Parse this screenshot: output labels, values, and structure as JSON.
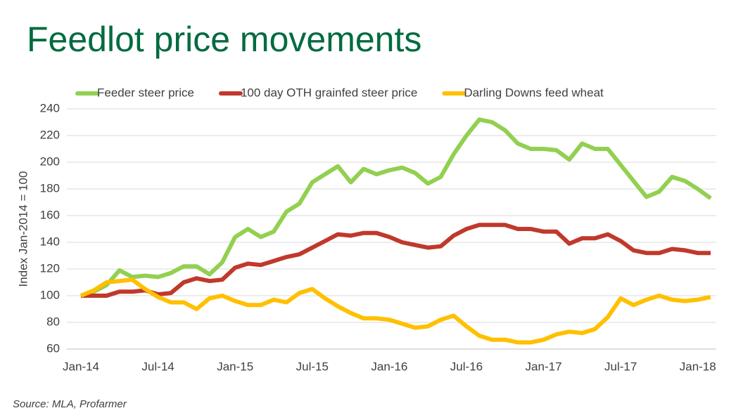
{
  "chart_data": {
    "type": "line",
    "title": "Feedlot price movements",
    "y_label": "Index Jan-2014 = 100",
    "source": "Source: MLA, Profarmer",
    "categories": [
      "Jan-14",
      null,
      null,
      null,
      null,
      null,
      "Jul-14",
      null,
      null,
      null,
      null,
      null,
      "Jan-15",
      null,
      null,
      null,
      null,
      null,
      "Jul-15",
      null,
      null,
      null,
      null,
      null,
      "Jan-16",
      null,
      null,
      null,
      null,
      null,
      "Jul-16",
      null,
      null,
      null,
      null,
      null,
      "Jan-17",
      null,
      null,
      null,
      null,
      null,
      "Jul-17",
      null,
      null,
      null,
      null,
      null,
      "Jan-18",
      null
    ],
    "series": [
      {
        "name": "Feeder steer price",
        "color": "#92d050",
        "values": [
          100,
          103,
          108,
          119,
          114,
          115,
          114,
          117,
          122,
          122,
          116,
          125,
          144,
          150,
          144,
          148,
          163,
          169,
          185,
          191,
          197,
          185,
          195,
          191,
          194,
          196,
          192,
          184,
          189,
          206,
          220,
          232,
          230,
          224,
          214,
          210,
          210,
          209,
          202,
          214,
          210,
          210,
          198,
          186,
          174,
          178,
          189,
          186,
          180,
          173
        ]
      },
      {
        "name": "100 day OTH grainfed steer price",
        "color": "#c0392b",
        "values": [
          100,
          100,
          100,
          103,
          103,
          104,
          101,
          102,
          110,
          113,
          111,
          112,
          121,
          124,
          123,
          126,
          129,
          131,
          136,
          141,
          146,
          145,
          147,
          147,
          144,
          140,
          138,
          136,
          137,
          145,
          150,
          153,
          153,
          153,
          150,
          150,
          148,
          148,
          139,
          143,
          143,
          146,
          141,
          134,
          132,
          132,
          135,
          134,
          132,
          132
        ]
      },
      {
        "name": "Darling Downs feed wheat",
        "color": "#ffc000",
        "values": [
          100,
          104,
          110,
          111,
          112,
          105,
          99,
          95,
          95,
          90,
          98,
          100,
          96,
          93,
          93,
          97,
          95,
          102,
          105,
          98,
          92,
          87,
          83,
          83,
          82,
          79,
          76,
          77,
          82,
          85,
          77,
          70,
          67,
          67,
          65,
          65,
          67,
          71,
          73,
          72,
          75,
          84,
          98,
          93,
          97,
          100,
          97,
          96,
          97,
          99
        ]
      }
    ],
    "ylim": [
      60,
      240
    ],
    "yticks": [
      60,
      80,
      100,
      120,
      140,
      160,
      180,
      200,
      220,
      240
    ],
    "grid": true
  }
}
